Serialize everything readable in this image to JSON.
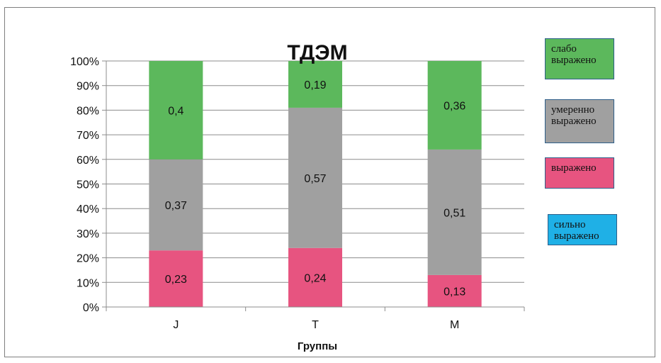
{
  "chart_data": {
    "type": "bar",
    "stacked": true,
    "percent": true,
    "title": "ТДЭМ",
    "xlabel": "Группы",
    "ylabel": "",
    "categories": [
      "J",
      "T",
      "M"
    ],
    "ylim": [
      0,
      100
    ],
    "yticks": [
      "0%",
      "10%",
      "20%",
      "30%",
      "40%",
      "50%",
      "60%",
      "70%",
      "80%",
      "90%",
      "100%"
    ],
    "grid": true,
    "legend_position": "right",
    "series": [
      {
        "name": "выражено",
        "color": "#e75480",
        "values": [
          0.23,
          0.24,
          0.13
        ],
        "labels": [
          "0,23",
          "0,24",
          "0,13"
        ]
      },
      {
        "name": "умеренно выражено",
        "color": "#a0a0a0",
        "values": [
          0.37,
          0.57,
          0.51
        ],
        "labels": [
          "0,37",
          "0,57",
          "0,51"
        ]
      },
      {
        "name": "слабо выражено",
        "color": "#5cb85c",
        "values": [
          0.4,
          0.19,
          0.36
        ],
        "labels": [
          "0,4",
          "0,19",
          "0,36"
        ]
      }
    ],
    "legend": [
      {
        "name": "слабо выражено",
        "color": "#5cb85c"
      },
      {
        "name": "умеренно выражено",
        "color": "#a0a0a0"
      },
      {
        "name": "выражено",
        "color": "#e75480"
      },
      {
        "name": "сильно выражено",
        "color": "#1fb0e6"
      }
    ]
  }
}
